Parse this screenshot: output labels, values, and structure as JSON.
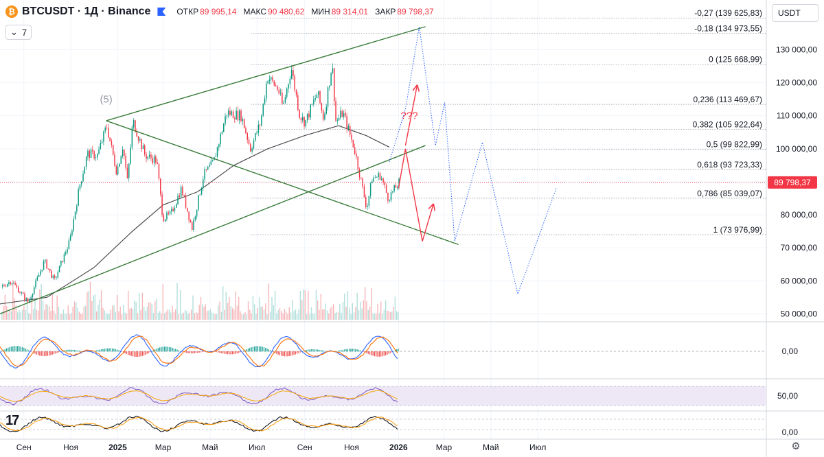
{
  "header": {
    "coin_icon": "bitcoin-icon",
    "symbol_line": "BTCUSDT · 1Д · Binance",
    "open_label": "ОТКР",
    "open_value": "89 995,14",
    "high_label": "МАКС",
    "high_value": "90 480,62",
    "low_label": "МИН",
    "low_value": "89 314,01",
    "close_label": "ЗАКР",
    "close_value": "89 798,37",
    "collapse_count": "7",
    "currency": "USDT"
  },
  "colors": {
    "up": "#089981",
    "down": "#f23645",
    "channel": "#3a7d3a",
    "forecast": "#2962ff",
    "ma": "#4d4d4d",
    "rsi": "#7e57c2",
    "rsi_ma": "#f7a600",
    "fib": "#9598a1"
  },
  "chart_data": {
    "type": "candlestick",
    "price_axis": {
      "min": 48000,
      "max": 143000,
      "scale": "linear",
      "ticks": [
        50000,
        60000,
        70000,
        80000,
        90000,
        100000,
        110000,
        120000,
        130000
      ],
      "tick_labels": [
        "50 000,00",
        "60 000,00",
        "70 000,00",
        "80 000,00",
        "90 000,00",
        "100 000,00",
        "110 000,00",
        "120 000,00",
        "130 000,00"
      ]
    },
    "time_axis": {
      "labels": [
        "Сен",
        "Ноя",
        "2025",
        "Мар",
        "Май",
        "Июл",
        "Сен",
        "Ноя",
        "2026",
        "Мар",
        "Май",
        "Июл"
      ],
      "dates": [
        "2024-09-01",
        "2024-11-01",
        "2025-01-01",
        "2025-03-01",
        "2025-05-01",
        "2025-07-01",
        "2025-09-01",
        "2025-11-01",
        "2026-01-01",
        "2026-03-01",
        "2026-05-01",
        "2026-07-01"
      ]
    },
    "last_price": {
      "value": 89798.37,
      "label": "89 798,37"
    },
    "price_path": [
      [
        "2024-08-01",
        58000
      ],
      [
        "2024-08-15",
        60000
      ],
      [
        "2024-09-06",
        53500
      ],
      [
        "2024-09-27",
        66000
      ],
      [
        "2024-10-10",
        60000
      ],
      [
        "2024-10-30",
        72000
      ],
      [
        "2024-11-12",
        89000
      ],
      [
        "2024-11-22",
        98500
      ],
      [
        "2024-12-05",
        98000
      ],
      [
        "2024-12-17",
        107000
      ],
      [
        "2024-12-30",
        93000
      ],
      [
        "2025-01-07",
        101000
      ],
      [
        "2025-01-13",
        90000
      ],
      [
        "2025-01-20",
        108500
      ],
      [
        "2025-02-05",
        98000
      ],
      [
        "2025-02-20",
        96500
      ],
      [
        "2025-02-28",
        79000
      ],
      [
        "2025-03-10",
        80000
      ],
      [
        "2025-03-24",
        88000
      ],
      [
        "2025-04-07",
        76000
      ],
      [
        "2025-04-22",
        92000
      ],
      [
        "2025-05-05",
        96000
      ],
      [
        "2025-05-22",
        111000
      ],
      [
        "2025-06-10",
        110000
      ],
      [
        "2025-06-22",
        100000
      ],
      [
        "2025-07-05",
        108000
      ],
      [
        "2025-07-14",
        122000
      ],
      [
        "2025-07-28",
        118000
      ],
      [
        "2025-08-03",
        112500
      ],
      [
        "2025-08-14",
        124500
      ],
      [
        "2025-08-25",
        110000
      ],
      [
        "2025-09-01",
        108000
      ],
      [
        "2025-09-17",
        117000
      ],
      [
        "2025-09-25",
        109000
      ],
      [
        "2025-10-06",
        126000
      ],
      [
        "2025-10-11",
        108000
      ],
      [
        "2025-10-20",
        111000
      ],
      [
        "2025-11-04",
        100000
      ],
      [
        "2025-11-20",
        82000
      ],
      [
        "2025-11-27",
        91000
      ],
      [
        "2025-12-08",
        92000
      ],
      [
        "2025-12-18",
        85000
      ],
      [
        "2026-01-01",
        89798
      ]
    ],
    "moving_average": [
      [
        "2024-08-01",
        53000
      ],
      [
        "2024-10-01",
        55000
      ],
      [
        "2024-12-01",
        64000
      ],
      [
        "2025-01-20",
        75000
      ],
      [
        "2025-03-01",
        83000
      ],
      [
        "2025-04-15",
        87000
      ],
      [
        "2025-06-01",
        95000
      ],
      [
        "2025-07-15",
        100000
      ],
      [
        "2025-09-01",
        104000
      ],
      [
        "2025-10-15",
        107000
      ],
      [
        "2025-11-20",
        104000
      ],
      [
        "2025-12-20",
        100500
      ]
    ],
    "channel_lines": [
      {
        "from": [
          "2024-12-17",
          108500
        ],
        "to": [
          "2026-02-05",
          137000
        ]
      },
      {
        "from": [
          "2024-08-01",
          50000
        ],
        "to": [
          "2026-02-05",
          101000
        ]
      },
      {
        "from": [
          "2024-12-17",
          108500
        ],
        "to": [
          "2026-03-20",
          71000
        ]
      }
    ],
    "fibonacci": [
      {
        "level": "-0,27",
        "value": 139625.83,
        "label": "-0,27 (139 625,83)"
      },
      {
        "level": "-0,18",
        "value": 134973.55,
        "label": "-0,18 (134 973,55)"
      },
      {
        "level": "0",
        "value": 125668.99,
        "label": "0 (125 668,99)"
      },
      {
        "level": "0,236",
        "value": 113469.67,
        "label": "0,236 (113 469,67)"
      },
      {
        "level": "0,382",
        "value": 105922.64,
        "label": "0,382 (105 922,64)"
      },
      {
        "level": "0,5",
        "value": 99822.99,
        "label": "0,5 (99 822,99)"
      },
      {
        "level": "0,618",
        "value": 93723.33,
        "label": "0,618 (93 723,33)"
      },
      {
        "level": "0,786",
        "value": 85039.07,
        "label": "0,786 (85 039,07)"
      },
      {
        "level": "1",
        "value": 73976.99,
        "label": "1 (73 976,99)"
      }
    ],
    "forecast_red": [
      [
        [
          "2026-01-01",
          88000
        ],
        [
          "2026-01-10",
          100000
        ],
        [
          "2026-02-01",
          72000
        ],
        [
          "2026-02-15",
          83000
        ]
      ],
      [
        [
          "2026-01-10",
          101000
        ],
        [
          "2026-01-25",
          119000
        ]
      ]
    ],
    "forecast_blue": [
      [
        [
          "2025-12-20",
          96000
        ],
        [
          "2026-01-10",
          112000
        ],
        [
          "2026-01-28",
          137000
        ],
        [
          "2026-02-18",
          101000
        ],
        [
          "2026-03-02",
          114000
        ],
        [
          "2026-03-15",
          72000
        ],
        [
          "2026-04-20",
          102000
        ],
        [
          "2026-06-05",
          56000
        ],
        [
          "2026-07-25",
          88000
        ]
      ]
    ],
    "annotations": [
      {
        "text": "(5)",
        "at": [
          "2024-12-17",
          114000
        ]
      },
      {
        "text": "???",
        "at": [
          "2026-01-15",
          109000
        ]
      }
    ],
    "oscillator_1": {
      "zero_label": "0,00",
      "series": [
        "fast",
        "slow"
      ]
    },
    "oscillator_2": {
      "level_label": "50,00"
    },
    "oscillator_3": {
      "level_label": "0,00"
    }
  }
}
